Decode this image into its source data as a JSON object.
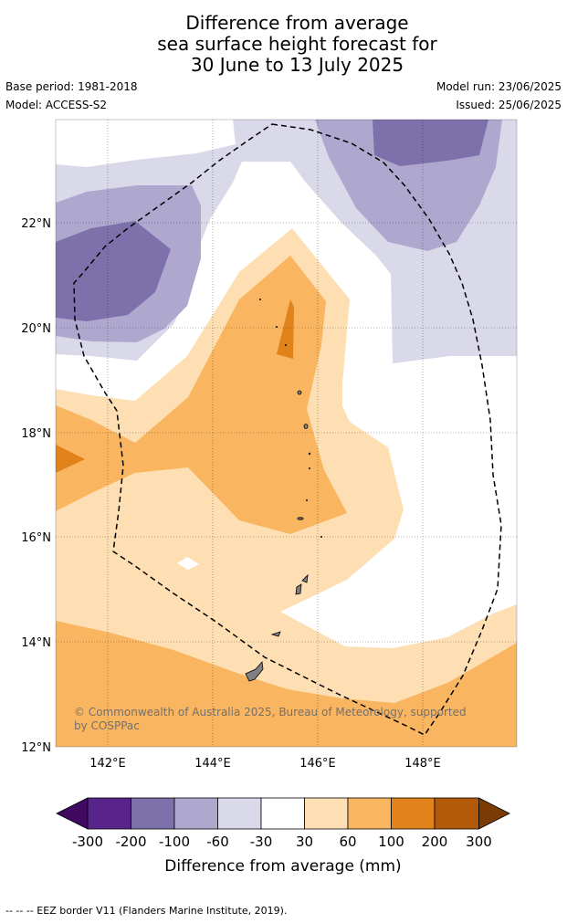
{
  "title": {
    "line1": "Difference from average",
    "line2": "sea surface height forecast for",
    "line3": "30 June to 13 July 2025"
  },
  "meta": {
    "base_period": "Base period: 1981-2018",
    "model": "Model: ACCESS-S2",
    "model_run": "Model run: 23/06/2025",
    "issued": "Issued: 25/06/2025"
  },
  "map": {
    "lon_labels": [
      "142°E",
      "144°E",
      "146°E",
      "148°E"
    ],
    "lat_labels": [
      "22°N",
      "20°N",
      "18°N",
      "16°N",
      "14°N",
      "12°N"
    ],
    "lon_range": [
      141,
      149.8
    ],
    "lat_range": [
      12,
      23.95
    ],
    "copyright": "© Commonwealth of Australia 2025, Bureau of Meteorology, supported by COSPPac",
    "copyright_line1": "© Commonwealth of Australia 2025, Bureau of Meteorology, supported",
    "copyright_line2": "by COSPPac",
    "zone_colors": {
      "neg200": "#7e71ab",
      "neg100": "#aea8cf",
      "neg60": "#d9d9e9",
      "pos30": "#fddfb3",
      "pos60": "#f9b55f",
      "pos100": "#e1821a",
      "land": "#808080",
      "eez_line": "#000000"
    }
  },
  "colorbar": {
    "label": "Difference from average (mm)",
    "ticks": [
      "-300",
      "-200",
      "-100",
      "-60",
      "-30",
      "30",
      "60",
      "100",
      "200",
      "300"
    ],
    "colors": [
      "#3f0a60",
      "#58238a",
      "#7e71ab",
      "#aea8cf",
      "#d9d9e9",
      "#ffffff",
      "#fddfb3",
      "#f9b55f",
      "#e1821a",
      "#b15b09",
      "#7b3b05"
    ]
  },
  "footer": "--  --  -- EEZ border V11 (Flanders Marine Institute, 2019)."
}
